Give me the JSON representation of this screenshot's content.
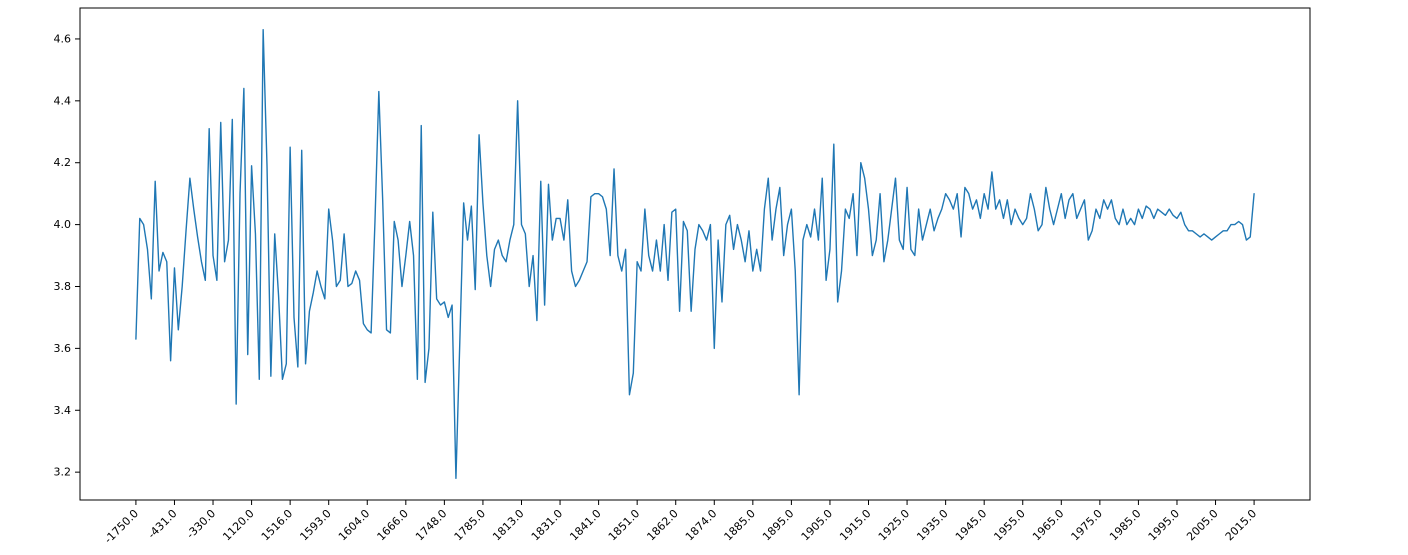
{
  "chart_data": {
    "type": "line",
    "title": "",
    "xlabel": "",
    "ylabel": "",
    "line_color": "#1f77b4",
    "grid": false,
    "legend": "none",
    "ylim": [
      3.11,
      4.7
    ],
    "y_ticks": [
      3.2,
      3.4,
      3.6,
      3.8,
      4.0,
      4.2,
      4.4,
      4.6
    ],
    "x_tick_labels": [
      "-1750.0",
      "-431.0",
      "-330.0",
      "1120.0",
      "1516.0",
      "1593.0",
      "1604.0",
      "1666.0",
      "1748.0",
      "1785.0",
      "1813.0",
      "1831.0",
      "1841.0",
      "1851.0",
      "1862.0",
      "1874.0",
      "1885.0",
      "1895.0",
      "1905.0",
      "1915.0",
      "1925.0",
      "1935.0",
      "1945.0",
      "1955.0",
      "1965.0",
      "1975.0",
      "1985.0",
      "1995.0",
      "2005.0",
      "2015.0"
    ],
    "x_tick_indices": [
      0,
      10,
      20,
      30,
      40,
      50,
      60,
      70,
      80,
      90,
      100,
      110,
      120,
      130,
      140,
      150,
      160,
      170,
      180,
      190,
      200,
      210,
      220,
      230,
      240,
      250,
      260,
      270,
      280,
      290
    ],
    "values": [
      3.63,
      4.02,
      4.0,
      3.92,
      3.76,
      4.14,
      3.85,
      3.91,
      3.88,
      3.56,
      3.86,
      3.66,
      3.8,
      3.98,
      4.15,
      4.05,
      3.96,
      3.88,
      3.82,
      4.31,
      3.9,
      3.82,
      4.33,
      3.88,
      3.95,
      4.34,
      3.42,
      4.1,
      4.44,
      3.58,
      4.19,
      3.97,
      3.5,
      4.63,
      4.19,
      3.51,
      3.97,
      3.77,
      3.5,
      3.55,
      4.25,
      3.7,
      3.54,
      4.24,
      3.55,
      3.72,
      3.78,
      3.85,
      3.8,
      3.76,
      4.05,
      3.95,
      3.8,
      3.82,
      3.97,
      3.8,
      3.81,
      3.85,
      3.82,
      3.68,
      3.66,
      3.65,
      4.01,
      4.43,
      4.08,
      3.66,
      3.65,
      4.01,
      3.95,
      3.8,
      3.9,
      4.01,
      3.9,
      3.5,
      4.32,
      3.49,
      3.6,
      4.04,
      3.76,
      3.74,
      3.75,
      3.7,
      3.74,
      3.18,
      3.62,
      4.07,
      3.95,
      4.06,
      3.79,
      4.29,
      4.07,
      3.9,
      3.8,
      3.92,
      3.95,
      3.9,
      3.88,
      3.95,
      4.0,
      4.4,
      4.0,
      3.97,
      3.8,
      3.9,
      3.69,
      4.14,
      3.74,
      4.13,
      3.95,
      4.02,
      4.02,
      3.95,
      4.08,
      3.85,
      3.8,
      3.82,
      3.85,
      3.88,
      4.09,
      4.1,
      4.1,
      4.09,
      4.05,
      3.9,
      4.18,
      3.9,
      3.85,
      3.92,
      3.45,
      3.52,
      3.88,
      3.85,
      4.05,
      3.9,
      3.85,
      3.95,
      3.85,
      4.0,
      3.82,
      4.04,
      4.05,
      3.72,
      4.01,
      3.98,
      3.72,
      3.92,
      4.0,
      3.98,
      3.95,
      4.0,
      3.6,
      3.95,
      3.75,
      4.0,
      4.03,
      3.92,
      4.0,
      3.95,
      3.88,
      3.98,
      3.85,
      3.92,
      3.85,
      4.05,
      4.15,
      3.95,
      4.05,
      4.12,
      3.9,
      4.0,
      4.05,
      3.85,
      3.45,
      3.95,
      4.0,
      3.96,
      4.05,
      3.95,
      4.15,
      3.82,
      3.92,
      4.26,
      3.75,
      3.85,
      4.05,
      4.02,
      4.1,
      3.9,
      4.2,
      4.15,
      4.05,
      3.9,
      3.95,
      4.1,
      3.88,
      3.95,
      4.05,
      4.15,
      3.95,
      3.92,
      4.12,
      3.92,
      3.9,
      4.05,
      3.95,
      4.0,
      4.05,
      3.98,
      4.02,
      4.05,
      4.1,
      4.08,
      4.05,
      4.1,
      3.96,
      4.12,
      4.1,
      4.05,
      4.08,
      4.02,
      4.1,
      4.05,
      4.17,
      4.05,
      4.08,
      4.02,
      4.08,
      4.0,
      4.05,
      4.02,
      4.0,
      4.02,
      4.1,
      4.05,
      3.98,
      4.0,
      4.12,
      4.05,
      4.0,
      4.05,
      4.1,
      4.02,
      4.08,
      4.1,
      4.02,
      4.05,
      4.08,
      3.95,
      3.98,
      4.05,
      4.02,
      4.08,
      4.05,
      4.08,
      4.02,
      4.0,
      4.05,
      4.0,
      4.02,
      4.0,
      4.05,
      4.02,
      4.06,
      4.05,
      4.02,
      4.05,
      4.04,
      4.03,
      4.05,
      4.03,
      4.02,
      4.04,
      4.0,
      3.98,
      3.98,
      3.97,
      3.96,
      3.97,
      3.96,
      3.95,
      3.96,
      3.97,
      3.98,
      3.98,
      4.0,
      4.0,
      4.01,
      4.0,
      3.95,
      3.96,
      4.1
    ]
  }
}
